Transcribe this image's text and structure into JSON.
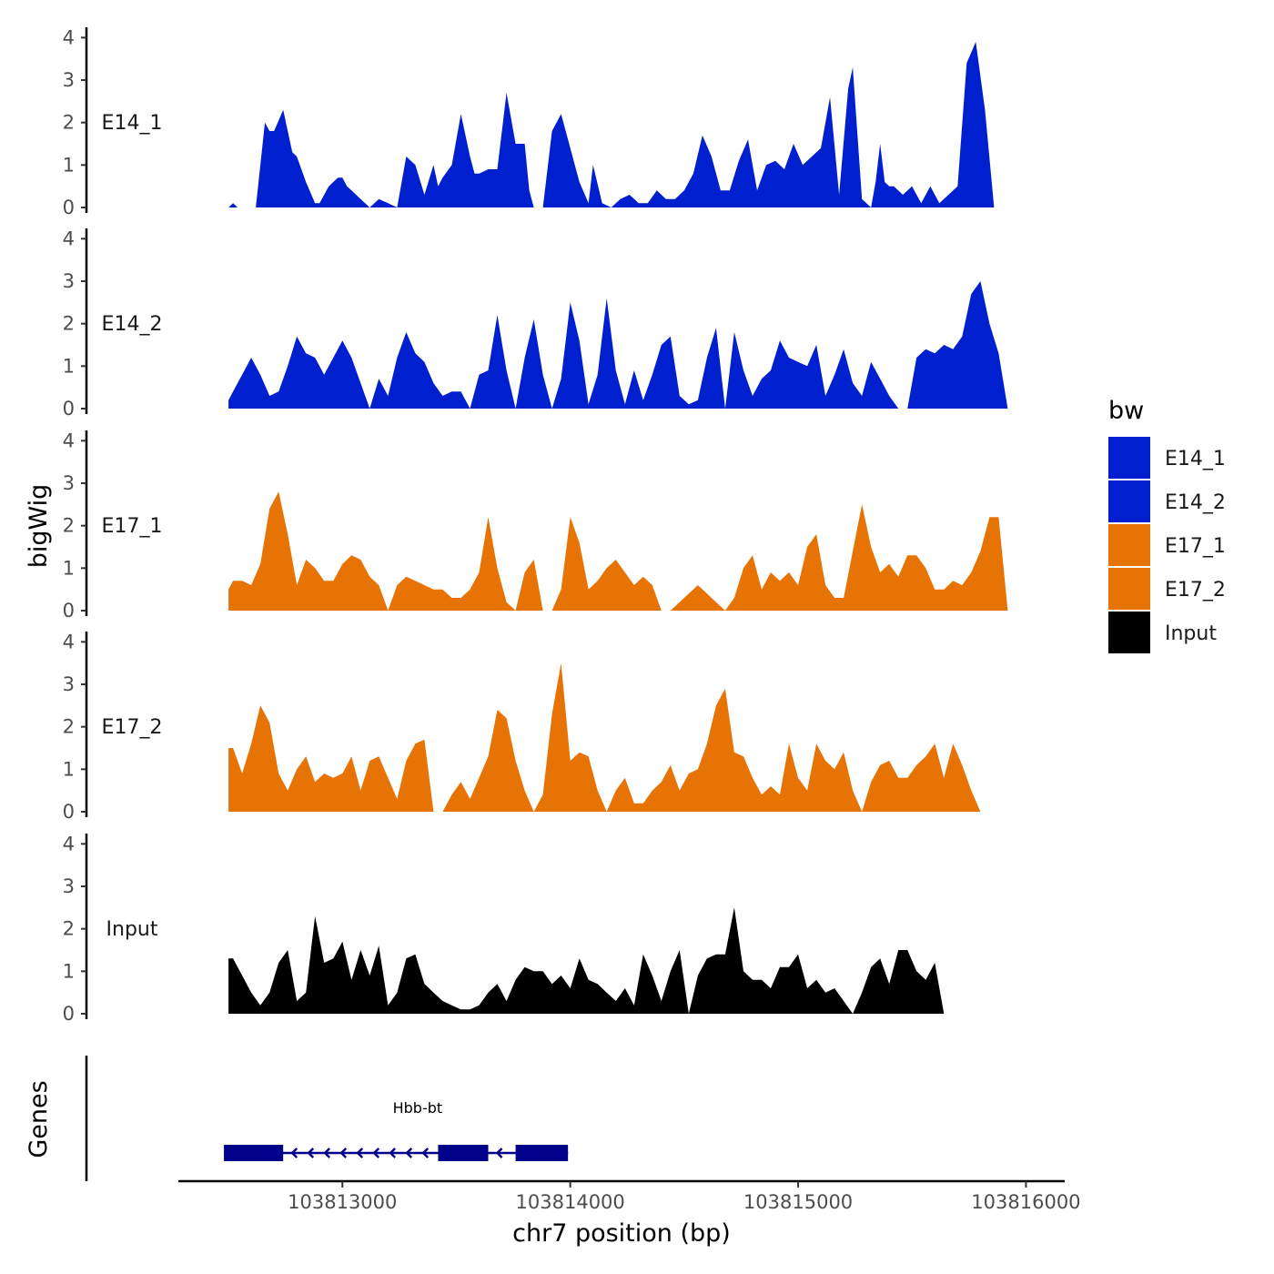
{
  "chart_data": {
    "type": "area",
    "title": "",
    "ylabel": "bigWig",
    "xlabel": "chr7 position (bp)",
    "genes_label": "Genes",
    "xlim": [
      103812280,
      103816170
    ],
    "ylim": [
      0,
      4.2
    ],
    "y_ticks": [
      0,
      1,
      2,
      3,
      4
    ],
    "x_ticks": [
      103813000,
      103814000,
      103815000,
      103816000
    ],
    "x_tick_labels": [
      "103813000",
      "103814000",
      "103815000",
      "103816000"
    ],
    "legend": {
      "title": "bw",
      "entries": [
        {
          "label": "E14_1",
          "color": "#0020d0"
        },
        {
          "label": "E14_2",
          "color": "#0020d0"
        },
        {
          "label": "E17_1",
          "color": "#e87305"
        },
        {
          "label": "E17_2",
          "color": "#e87305"
        },
        {
          "label": "Input",
          "color": "#000000"
        }
      ]
    },
    "series": [
      {
        "name": "E14_1",
        "color": "#0020d0",
        "x": [
          103812500,
          103812520,
          103812540,
          103812580,
          103812620,
          103812660,
          103812680,
          103812700,
          103812740,
          103812760,
          103812780,
          103812800,
          103812840,
          103812880,
          103812900,
          103812940,
          103812980,
          103813000,
          103813020,
          103813040,
          103813080,
          103813120,
          103813160,
          103813200,
          103813240,
          103813280,
          103813320,
          103813360,
          103813400,
          103813420,
          103813440,
          103813480,
          103813520,
          103813560,
          103813580,
          103813600,
          103813640,
          103813680,
          103813720,
          103813760,
          103813800,
          103813820,
          103813840,
          103813860,
          103813880,
          103813920,
          103813960,
          103814000,
          103814040,
          103814080,
          103814100,
          103814140,
          103814180,
          103814220,
          103814260,
          103814300,
          103814340,
          103814380,
          103814420,
          103814460,
          103814500,
          103814540,
          103814580,
          103814620,
          103814660,
          103814700,
          103814740,
          103814780,
          103814820,
          103814860,
          103814900,
          103814940,
          103814980,
          103815020,
          103815060,
          103815100,
          103815140,
          103815180,
          103815220,
          103815240,
          103815280,
          103815320,
          103815340,
          103815360,
          103815380,
          103815400,
          103815420,
          103815460,
          103815500,
          103815540,
          103815580,
          103815620,
          103815660,
          103815700,
          103815740,
          103815780,
          103815820,
          103815860,
          103815880,
          103815900,
          103815920,
          103815940,
          103815960,
          103815970
        ],
        "y": [
          0.0,
          0.1,
          0.0,
          0.0,
          0.0,
          2.0,
          1.8,
          1.8,
          2.3,
          1.8,
          1.3,
          1.2,
          0.6,
          0.1,
          0.1,
          0.5,
          0.7,
          0.7,
          0.5,
          0.4,
          0.2,
          0.0,
          0.2,
          0.1,
          0.0,
          1.2,
          1.0,
          0.3,
          1.0,
          0.5,
          0.7,
          1.0,
          2.2,
          1.2,
          0.8,
          0.8,
          0.9,
          0.9,
          2.7,
          1.5,
          1.5,
          0.4,
          0.0,
          0.0,
          0.0,
          1.8,
          2.2,
          1.4,
          0.6,
          0.1,
          1.0,
          0.1,
          0.0,
          0.2,
          0.3,
          0.1,
          0.1,
          0.4,
          0.2,
          0.2,
          0.4,
          0.8,
          1.7,
          1.2,
          0.4,
          0.4,
          1.1,
          1.6,
          0.4,
          1.0,
          1.1,
          0.9,
          1.5,
          1.0,
          1.2,
          1.4,
          2.6,
          0.3,
          2.8,
          3.3,
          0.2,
          0.0,
          0.6,
          1.5,
          0.6,
          0.5,
          0.5,
          0.3,
          0.5,
          0.1,
          0.5,
          0.1,
          0.3,
          0.5,
          3.4,
          3.9,
          2.3,
          0.0,
          0.0,
          0.0,
          0.0,
          0.0,
          0.0,
          0.0
        ]
      },
      {
        "name": "E14_2",
        "color": "#0020d0",
        "x": [
          103812500,
          103812520,
          103812560,
          103812600,
          103812640,
          103812680,
          103812720,
          103812760,
          103812800,
          103812840,
          103812880,
          103812920,
          103812960,
          103813000,
          103813040,
          103813080,
          103813120,
          103813160,
          103813200,
          103813240,
          103813280,
          103813320,
          103813360,
          103813400,
          103813440,
          103813480,
          103813520,
          103813560,
          103813600,
          103813640,
          103813680,
          103813720,
          103813760,
          103813800,
          103813840,
          103813880,
          103813920,
          103813960,
          103814000,
          103814040,
          103814080,
          103814120,
          103814160,
          103814200,
          103814240,
          103814280,
          103814320,
          103814360,
          103814400,
          103814440,
          103814480,
          103814520,
          103814560,
          103814600,
          103814640,
          103814680,
          103814720,
          103814760,
          103814800,
          103814840,
          103814880,
          103814920,
          103814960,
          103815000,
          103815040,
          103815080,
          103815120,
          103815160,
          103815200,
          103815240,
          103815280,
          103815320,
          103815360,
          103815400,
          103815440,
          103815480,
          103815520,
          103815560,
          103815600,
          103815640,
          103815680,
          103815720,
          103815760,
          103815800,
          103815840,
          103815880,
          103815920,
          103815940,
          103815960,
          103815970
        ],
        "y": [
          0.2,
          0.4,
          0.8,
          1.2,
          0.8,
          0.3,
          0.4,
          1.0,
          1.7,
          1.3,
          1.2,
          0.8,
          1.2,
          1.6,
          1.2,
          0.6,
          0.0,
          0.7,
          0.3,
          1.2,
          1.8,
          1.3,
          1.1,
          0.6,
          0.3,
          0.4,
          0.4,
          0.0,
          0.8,
          0.9,
          2.2,
          0.9,
          0.0,
          1.2,
          2.1,
          0.8,
          0.0,
          0.7,
          2.5,
          1.6,
          0.1,
          0.8,
          2.6,
          0.9,
          0.1,
          0.9,
          0.2,
          0.8,
          1.5,
          1.7,
          0.3,
          0.1,
          0.2,
          1.2,
          1.9,
          0.0,
          1.8,
          0.9,
          0.3,
          0.7,
          0.9,
          1.6,
          1.2,
          1.1,
          1.0,
          1.5,
          0.3,
          0.8,
          1.4,
          0.6,
          0.3,
          1.1,
          0.7,
          0.3,
          0.0,
          0.0,
          1.2,
          1.4,
          1.3,
          1.5,
          1.4,
          1.7,
          2.7,
          3.0,
          2.0,
          1.3,
          0.0,
          0.0,
          0.0,
          0.0
        ]
      },
      {
        "name": "E17_1",
        "color": "#e87305",
        "x": [
          103812500,
          103812520,
          103812560,
          103812600,
          103812640,
          103812680,
          103812720,
          103812760,
          103812800,
          103812840,
          103812880,
          103812920,
          103812960,
          103813000,
          103813040,
          103813080,
          103813120,
          103813160,
          103813200,
          103813240,
          103813280,
          103813320,
          103813360,
          103813400,
          103813440,
          103813480,
          103813520,
          103813560,
          103813600,
          103813640,
          103813680,
          103813720,
          103813760,
          103813800,
          103813840,
          103813880,
          103813920,
          103813960,
          103814000,
          103814040,
          103814080,
          103814120,
          103814160,
          103814200,
          103814240,
          103814280,
          103814320,
          103814360,
          103814400,
          103814440,
          103814480,
          103814520,
          103814560,
          103814600,
          103814640,
          103814680,
          103814720,
          103814760,
          103814800,
          103814840,
          103814880,
          103814920,
          103814960,
          103815000,
          103815040,
          103815080,
          103815120,
          103815160,
          103815200,
          103815240,
          103815280,
          103815320,
          103815360,
          103815400,
          103815440,
          103815480,
          103815520,
          103815560,
          103815600,
          103815640,
          103815680,
          103815720,
          103815760,
          103815800,
          103815840,
          103815880,
          103815920,
          103815940,
          103815960,
          103815970
        ],
        "y": [
          0.5,
          0.7,
          0.7,
          0.6,
          1.1,
          2.4,
          2.8,
          1.8,
          0.6,
          1.2,
          1.0,
          0.7,
          0.7,
          1.1,
          1.3,
          1.2,
          0.8,
          0.6,
          0.0,
          0.6,
          0.8,
          0.7,
          0.6,
          0.5,
          0.5,
          0.3,
          0.3,
          0.5,
          0.9,
          2.2,
          1.0,
          0.2,
          0.0,
          0.9,
          1.2,
          0.0,
          0.0,
          0.5,
          2.2,
          1.6,
          0.5,
          0.7,
          1.0,
          1.2,
          0.9,
          0.6,
          0.8,
          0.6,
          0.0,
          0.0,
          0.2,
          0.4,
          0.6,
          0.4,
          0.2,
          0.0,
          0.3,
          1.0,
          1.3,
          0.5,
          0.9,
          0.7,
          0.9,
          0.6,
          1.5,
          1.8,
          0.6,
          0.3,
          0.3,
          1.4,
          2.5,
          1.5,
          0.9,
          1.1,
          0.8,
          1.3,
          1.3,
          1.0,
          0.5,
          0.5,
          0.7,
          0.6,
          0.9,
          1.4,
          2.2,
          2.2,
          0.0,
          0.0,
          0.0,
          0.0
        ]
      },
      {
        "name": "E17_2",
        "color": "#e87305",
        "x": [
          103812500,
          103812520,
          103812560,
          103812600,
          103812640,
          103812680,
          103812720,
          103812760,
          103812800,
          103812840,
          103812880,
          103812920,
          103812960,
          103813000,
          103813040,
          103813080,
          103813120,
          103813160,
          103813200,
          103813240,
          103813280,
          103813320,
          103813360,
          103813400,
          103813440,
          103813480,
          103813520,
          103813560,
          103813600,
          103813640,
          103813680,
          103813720,
          103813760,
          103813800,
          103813840,
          103813880,
          103813920,
          103813960,
          103814000,
          103814040,
          103814080,
          103814120,
          103814160,
          103814200,
          103814240,
          103814280,
          103814320,
          103814360,
          103814400,
          103814440,
          103814480,
          103814520,
          103814560,
          103814600,
          103814640,
          103814680,
          103814720,
          103814760,
          103814800,
          103814840,
          103814880,
          103814920,
          103814960,
          103815000,
          103815040,
          103815080,
          103815120,
          103815160,
          103815200,
          103815240,
          103815280,
          103815320,
          103815360,
          103815400,
          103815440,
          103815480,
          103815520,
          103815560,
          103815600,
          103815640,
          103815680,
          103815720,
          103815760,
          103815800,
          103815840,
          103815880,
          103815920,
          103815940,
          103815960,
          103815970
        ],
        "y": [
          1.5,
          1.5,
          0.9,
          1.6,
          2.5,
          2.1,
          0.9,
          0.5,
          1.0,
          1.3,
          0.7,
          0.9,
          0.8,
          0.9,
          1.3,
          0.5,
          1.2,
          1.3,
          0.8,
          0.3,
          1.2,
          1.6,
          1.7,
          0.0,
          0.0,
          0.4,
          0.7,
          0.3,
          0.8,
          1.3,
          2.4,
          2.2,
          1.2,
          0.5,
          0.0,
          0.4,
          2.3,
          3.5,
          1.2,
          1.4,
          1.3,
          0.5,
          0.0,
          0.5,
          0.8,
          0.2,
          0.2,
          0.5,
          0.7,
          1.1,
          0.5,
          0.9,
          1.0,
          1.6,
          2.5,
          2.9,
          1.4,
          1.3,
          0.8,
          0.4,
          0.6,
          0.4,
          1.6,
          0.8,
          0.5,
          1.6,
          1.2,
          1.0,
          1.4,
          0.5,
          0.0,
          0.7,
          1.1,
          1.2,
          0.8,
          0.8,
          1.1,
          1.3,
          1.6,
          0.8,
          1.6,
          1.1,
          0.5,
          0.0,
          0.0,
          0.0,
          0.0,
          0.0,
          0.0,
          0.0
        ]
      },
      {
        "name": "Input",
        "color": "#000000",
        "x": [
          103812500,
          103812520,
          103812560,
          103812600,
          103812640,
          103812680,
          103812720,
          103812760,
          103812800,
          103812840,
          103812880,
          103812920,
          103812960,
          103813000,
          103813040,
          103813080,
          103813120,
          103813160,
          103813200,
          103813240,
          103813280,
          103813320,
          103813360,
          103813400,
          103813440,
          103813480,
          103813520,
          103813560,
          103813600,
          103813640,
          103813680,
          103813720,
          103813760,
          103813800,
          103813840,
          103813880,
          103813920,
          103813960,
          103814000,
          103814040,
          103814080,
          103814120,
          103814160,
          103814200,
          103814240,
          103814280,
          103814320,
          103814360,
          103814400,
          103814440,
          103814480,
          103814520,
          103814560,
          103814600,
          103814640,
          103814680,
          103814720,
          103814760,
          103814800,
          103814840,
          103814880,
          103814920,
          103814960,
          103815000,
          103815040,
          103815080,
          103815120,
          103815160,
          103815200,
          103815240,
          103815280,
          103815320,
          103815360,
          103815400,
          103815440,
          103815480,
          103815520,
          103815560,
          103815600,
          103815640,
          103815680,
          103815720,
          103815760,
          103815800,
          103815840,
          103815880,
          103815920,
          103815940,
          103815960,
          103815970
        ],
        "y": [
          1.3,
          1.3,
          0.9,
          0.5,
          0.2,
          0.5,
          1.2,
          1.5,
          0.3,
          0.5,
          2.3,
          1.2,
          1.3,
          1.7,
          0.8,
          1.5,
          0.9,
          1.6,
          0.2,
          0.5,
          1.3,
          1.4,
          0.7,
          0.5,
          0.3,
          0.2,
          0.1,
          0.1,
          0.2,
          0.5,
          0.7,
          0.3,
          0.8,
          1.1,
          1.0,
          1.0,
          0.7,
          0.9,
          0.6,
          1.3,
          0.8,
          0.7,
          0.5,
          0.3,
          0.6,
          0.2,
          1.4,
          0.9,
          0.3,
          1.0,
          1.5,
          0.0,
          0.9,
          1.3,
          1.4,
          1.4,
          2.5,
          1.0,
          0.8,
          0.8,
          0.6,
          1.1,
          1.1,
          1.4,
          0.6,
          0.8,
          0.5,
          0.6,
          0.3,
          0.0,
          0.5,
          1.1,
          1.3,
          0.7,
          1.5,
          1.5,
          1.0,
          0.8,
          1.2,
          0.0,
          0.0,
          0.0,
          0.0,
          0.0,
          0.0,
          0.0,
          0.0,
          0.0,
          0.0,
          0.0
        ]
      }
    ],
    "gene": {
      "name": "Hbb-bt",
      "strand": "-",
      "color": "#00008b",
      "start": 103812480,
      "end": 103813990,
      "exons": [
        [
          103812480,
          103812740
        ],
        [
          103813420,
          103813640
        ],
        [
          103813760,
          103813990
        ]
      ]
    }
  }
}
